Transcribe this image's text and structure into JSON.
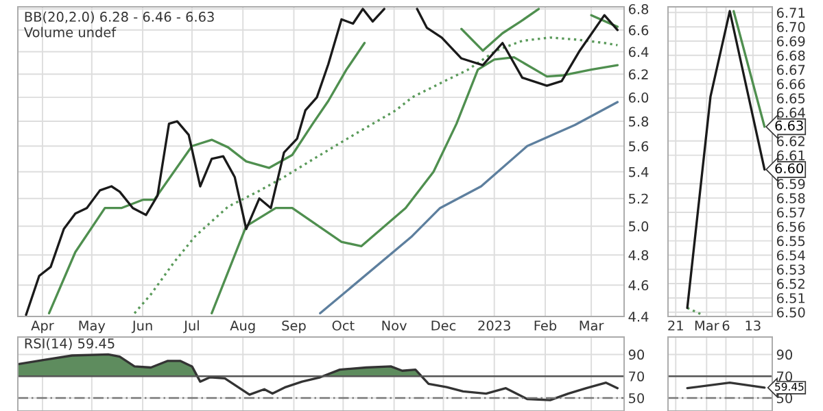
{
  "chart_data": [
    {
      "type": "line",
      "log": "y",
      "grid": true,
      "xlim": [
        "2022-03-17",
        "2023-03-21"
      ],
      "ylim": [
        4.4,
        6.82
      ],
      "xticks": [
        {
          "value": "2022-04-01",
          "label": "Apr"
        },
        {
          "value": "2022-05-01",
          "label": "May"
        },
        {
          "value": "2022-06-01",
          "label": "Jun"
        },
        {
          "value": "2022-07-01",
          "label": "Jul"
        },
        {
          "value": "2022-08-01",
          "label": "Aug"
        },
        {
          "value": "2022-09-01",
          "label": "Sep"
        },
        {
          "value": "2022-10-01",
          "label": "Oct"
        },
        {
          "value": "2022-11-01",
          "label": "Nov"
        },
        {
          "value": "2022-12-01",
          "label": "Dec"
        },
        {
          "value": "2023-01-01",
          "label": "2023"
        },
        {
          "value": "2023-02-01",
          "label": "Feb"
        },
        {
          "value": "2023-03-01",
          "label": "Mar"
        }
      ],
      "yticks": [
        4.4,
        4.6,
        4.8,
        {
          "value": 5,
          "label": "5.0"
        },
        5.2,
        5.4,
        5.6,
        5.8,
        {
          "value": 6,
          "label": "6.0"
        },
        6.2,
        6.4,
        6.6,
        6.8
      ],
      "annotations": [
        "BB(20,2.0) 6.28 - 6.46 - 6.63",
        "Volume undef"
      ],
      "series": [
        {
          "color": "#5d7f9e",
          "x": [
            "2022-09-17",
            "2022-11-12",
            "2022-11-29",
            "2022-12-24",
            "2023-01-21",
            "2023-02-19",
            "2023-03-17"
          ],
          "values": [
            4.42,
            4.93,
            5.13,
            5.29,
            5.6,
            5.77,
            5.96
          ]
        },
        {
          "color": "#5a9a5a",
          "line_style": "dotted",
          "x": [
            "2022-05-27",
            "2022-06-06",
            "2022-06-20",
            "2022-07-03",
            "2022-07-23",
            "2022-08-10",
            "2022-08-26",
            "2022-09-17",
            "2022-10-10",
            "2022-11-02",
            "2022-11-12",
            "2022-11-29",
            "2022-12-16",
            "2023-01-02",
            "2023-01-18",
            "2023-02-04",
            "2023-02-21",
            "2023-03-09",
            "2023-03-17"
          ],
          "values": [
            4.42,
            4.54,
            4.75,
            4.93,
            5.14,
            5.25,
            5.36,
            5.53,
            5.71,
            5.89,
            6.0,
            6.12,
            6.24,
            6.41,
            6.5,
            6.53,
            6.51,
            6.48,
            6.46
          ]
        },
        {
          "color": "#4f8f4f",
          "x": [
            "2022-04-05",
            "2022-04-21",
            "2022-05-09",
            "2022-05-19",
            "2022-06-01",
            "2022-06-08",
            "2022-06-20",
            "2022-07-01",
            "2022-07-13",
            "2022-07-23",
            "2022-08-03",
            "2022-08-17",
            "2022-08-31",
            "2022-09-12",
            "2022-09-22",
            "2022-10-03",
            "2022-10-14",
            "2022-10-31",
            "2022-11-08",
            "2022-11-19",
            "2022-12-12",
            "2022-12-25",
            "2023-01-06",
            "2023-01-17",
            "2023-01-28",
            "2023-02-10",
            "2023-03-01",
            "2023-03-17"
          ],
          "values": [
            4.42,
            4.82,
            5.13,
            5.13,
            5.19,
            5.19,
            5.4,
            5.6,
            5.65,
            5.59,
            5.48,
            5.43,
            5.53,
            5.77,
            5.97,
            6.24,
            6.48,
            null,
            null,
            null,
            6.61,
            6.41,
            6.57,
            6.68,
            6.8,
            null,
            6.74,
            6.63
          ]
        },
        {
          "color": "#4f8f4f",
          "x": [
            "2022-07-13",
            "2022-08-03",
            "2022-08-21",
            "2022-08-31",
            "2022-09-30",
            "2022-10-12",
            "2022-11-08",
            "2022-11-25",
            "2022-12-09",
            "2022-12-22",
            "2023-01-01",
            "2023-01-13",
            "2023-02-02",
            "2023-02-12",
            "2023-03-01",
            "2023-03-17"
          ],
          "values": [
            4.42,
            5.0,
            5.13,
            5.13,
            4.89,
            4.86,
            5.13,
            5.4,
            5.78,
            6.24,
            6.33,
            6.35,
            6.18,
            6.19,
            6.24,
            6.28
          ]
        },
        {
          "color": "#1a1a1a",
          "x": [
            "2022-03-22",
            "2022-03-30",
            "2022-04-06",
            "2022-04-14",
            "2022-04-21",
            "2022-04-28",
            "2022-05-06",
            "2022-05-13",
            "2022-05-18",
            "2022-05-26",
            "2022-06-03",
            "2022-06-10",
            "2022-06-17",
            "2022-06-22",
            "2022-06-29",
            "2022-07-06",
            "2022-07-13",
            "2022-07-20",
            "2022-07-27",
            "2022-08-03",
            "2022-08-11",
            "2022-08-18",
            "2022-08-26",
            "2022-09-03",
            "2022-09-08",
            "2022-09-15",
            "2022-09-22",
            "2022-09-30",
            "2022-10-07",
            "2022-10-13",
            "2022-10-19",
            "2022-10-26",
            "2022-11-02",
            "2022-11-15",
            "2022-11-21",
            "2022-11-30",
            "2022-12-12",
            "2022-12-25",
            "2023-01-06",
            "2023-01-18",
            "2023-02-02",
            "2023-02-11",
            "2023-02-22",
            "2023-03-09",
            "2023-03-17"
          ],
          "values": [
            4.41,
            4.66,
            4.72,
            4.98,
            5.09,
            5.13,
            5.26,
            5.29,
            5.25,
            5.13,
            5.08,
            5.22,
            5.78,
            5.8,
            5.69,
            5.29,
            5.5,
            5.52,
            5.36,
            4.98,
            5.2,
            5.13,
            5.55,
            5.66,
            5.89,
            6.0,
            6.29,
            6.7,
            6.66,
            6.8,
            6.68,
            6.8,
            null,
            6.8,
            6.62,
            6.53,
            6.34,
            6.28,
            6.48,
            6.17,
            6.1,
            6.14,
            6.41,
            6.74,
            6.6
          ]
        }
      ]
    },
    {
      "type": "line",
      "grid": true,
      "xlim": [
        "2023-02-19",
        "2023-03-18"
      ],
      "ylim": [
        6.497,
        6.714
      ],
      "xticks": [
        {
          "value": "2023-02-21",
          "label": "21"
        },
        {
          "value": "2023-03-01",
          "label": "Mar"
        },
        {
          "value": "2023-03-06",
          "label": "6"
        },
        {
          "value": "2023-03-13",
          "label": "13"
        }
      ],
      "yticks": [
        {
          "value": 6.5,
          "label": "6.50"
        },
        {
          "value": 6.51,
          "label": "6.51"
        },
        {
          "value": 6.52,
          "label": "6.52"
        },
        {
          "value": 6.53,
          "label": "6.53"
        },
        {
          "value": 6.54,
          "label": "6.54"
        },
        {
          "value": 6.55,
          "label": "6.55"
        },
        {
          "value": 6.56,
          "label": "6.56"
        },
        {
          "value": 6.57,
          "label": "6.57"
        },
        {
          "value": 6.58,
          "label": "6.58"
        },
        {
          "value": 6.59,
          "label": "6.59"
        },
        {
          "value": 6.61,
          "label": "6.61"
        },
        {
          "value": 6.62,
          "label": "6.62"
        },
        {
          "value": 6.64,
          "label": "6.64"
        },
        {
          "value": 6.65,
          "label": "6.65"
        },
        {
          "value": 6.66,
          "label": "6.66"
        },
        {
          "value": 6.67,
          "label": "6.67"
        },
        {
          "value": 6.68,
          "label": "6.68"
        },
        {
          "value": 6.69,
          "label": "6.69"
        },
        {
          "value": 6.7,
          "label": "6.70"
        },
        {
          "value": 6.71,
          "label": "6.71"
        }
      ],
      "annotations": [
        {
          "text": "6.63",
          "x": "2023-03-16",
          "y": 6.63
        },
        {
          "text": "6.60",
          "x": "2023-03-16",
          "y": 6.6
        }
      ],
      "series": [
        {
          "color": "#5a9a5a",
          "line_style": "dotted",
          "x": [
            "2023-02-24",
            "2023-02-28"
          ],
          "values": [
            6.503,
            6.498
          ]
        },
        {
          "color": "#4f8f4f",
          "x": [
            "2023-03-08",
            "2023-03-16"
          ],
          "values": [
            6.711,
            6.63
          ]
        },
        {
          "color": "#1a1a1a",
          "x": [
            "2023-02-24",
            "2023-03-02",
            "2023-03-07",
            "2023-03-16"
          ],
          "values": [
            6.503,
            6.651,
            6.711,
            6.6
          ]
        }
      ]
    },
    {
      "type": "line",
      "grid": true,
      "tick_labels": "y",
      "xlim": [
        "2022-03-17",
        "2023-03-21"
      ],
      "ylim": [
        38,
        106
      ],
      "xticks": [
        {
          "value": "2022-04-01",
          "label": null
        },
        {
          "value": "2022-05-01",
          "label": null
        },
        {
          "value": "2022-06-01",
          "label": null
        },
        {
          "value": "2022-07-01",
          "label": null
        },
        {
          "value": "2022-08-01",
          "label": null
        },
        {
          "value": "2022-09-01",
          "label": null
        },
        {
          "value": "2022-10-01",
          "label": null
        },
        {
          "value": "2022-11-01",
          "label": null
        },
        {
          "value": "2022-12-01",
          "label": null
        },
        {
          "value": "2023-01-01",
          "label": null
        },
        {
          "value": "2023-02-01",
          "label": null
        },
        {
          "value": "2023-03-01",
          "label": null
        }
      ],
      "yticks": [
        50,
        70,
        90
      ],
      "ref_lines": [
        {
          "axis": "y",
          "value": 70,
          "color": "#555555",
          "line_style": "solid"
        },
        {
          "axis": "y",
          "value": 50,
          "color": "#777777",
          "line_style": "dashed"
        }
      ],
      "annotations": [
        "RSI(14) 59.45"
      ],
      "series": [
        {
          "type": "area",
          "color": "#5e8c5e",
          "x": [
            "2022-03-17",
            "2022-04-02",
            "2022-04-19",
            "2022-05-11",
            "2022-05-18",
            "2022-05-27",
            "2022-06-06",
            "2022-06-16",
            "2022-06-24",
            "2022-07-01",
            "2022-07-04",
            "2022-08-01",
            "2022-09-19",
            "2022-09-29",
            "2022-10-15",
            "2022-10-30",
            "2022-11-06",
            "2022-11-14",
            "2022-11-18"
          ],
          "values": [
            81,
            85,
            89,
            90,
            88,
            79,
            78,
            84,
            84,
            79,
            70,
            null,
            70,
            76,
            78,
            79,
            75,
            76,
            70
          ]
        },
        {
          "color": "#333333",
          "x": [
            "2022-03-17",
            "2022-04-02",
            "2022-04-19",
            "2022-05-11",
            "2022-05-18",
            "2022-05-27",
            "2022-06-06",
            "2022-06-16",
            "2022-06-24",
            "2022-07-01",
            "2022-07-06",
            "2022-07-12",
            "2022-07-21",
            "2022-08-05",
            "2022-08-14",
            "2022-08-19",
            "2022-08-27",
            "2022-09-06",
            "2022-09-17",
            "2022-09-29",
            "2022-10-15",
            "2022-10-30",
            "2022-11-06",
            "2022-11-14",
            "2022-11-22",
            "2022-12-03",
            "2022-12-13",
            "2022-12-27",
            "2023-01-08",
            "2023-01-21",
            "2023-02-04",
            "2023-02-15",
            "2023-02-26",
            "2023-03-10",
            "2023-03-17"
          ],
          "values": [
            81,
            85,
            89,
            90,
            88,
            79,
            78,
            84,
            84,
            79,
            65,
            69,
            68,
            53,
            58,
            54,
            60,
            65,
            69,
            76,
            78,
            79,
            75,
            76,
            63,
            60,
            56,
            54,
            59,
            49,
            48,
            54,
            59,
            64,
            59
          ]
        }
      ]
    },
    {
      "type": "line",
      "grid": true,
      "tick_labels": "y",
      "xlim": [
        "2023-02-19",
        "2023-03-18"
      ],
      "ylim": [
        38,
        106
      ],
      "xticks": [
        {
          "value": "2023-02-21",
          "label": null
        },
        {
          "value": "2023-03-01",
          "label": null
        },
        {
          "value": "2023-03-06",
          "label": null
        },
        {
          "value": "2023-03-13",
          "label": null
        }
      ],
      "yticks": [
        50,
        70,
        90
      ],
      "ref_lines": [
        {
          "axis": "y",
          "value": 70,
          "color": "#555555",
          "line_style": "solid"
        },
        {
          "axis": "y",
          "value": 50,
          "color": "#777777",
          "line_style": "dashed"
        }
      ],
      "annotations": [
        {
          "text": "59.45",
          "x": "2023-03-16",
          "y": 59.45
        }
      ],
      "series": [
        {
          "color": "#333333",
          "x": [
            "2023-02-24",
            "2023-03-07",
            "2023-03-16"
          ],
          "values": [
            59,
            64,
            59.45
          ]
        }
      ]
    }
  ]
}
